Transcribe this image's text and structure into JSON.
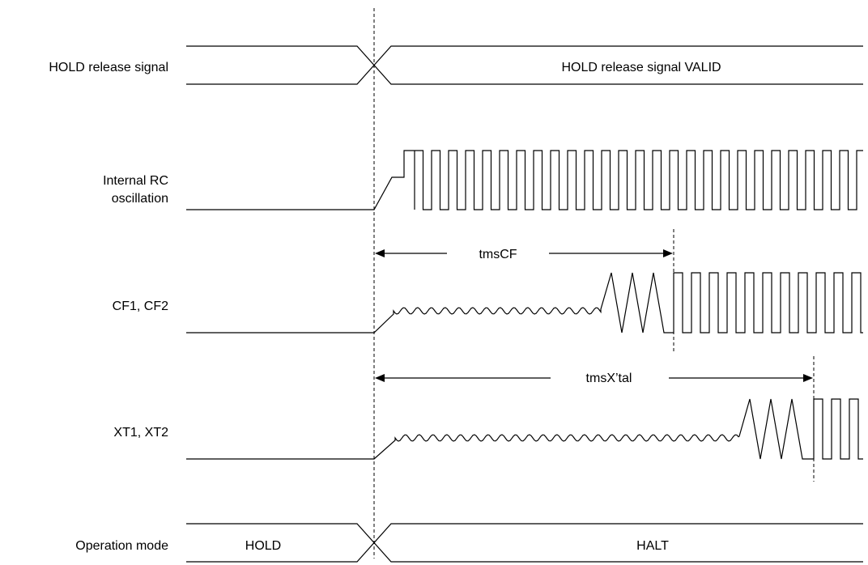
{
  "signals": {
    "hold_release": {
      "label": "HOLD release signal",
      "state_after": "HOLD release signal VALID"
    },
    "rc_oscillation": {
      "label_line1": "Internal RC",
      "label_line2": "oscillation"
    },
    "cf": {
      "label": "CF1, CF2"
    },
    "xt": {
      "label": "XT1, XT2"
    },
    "operation_mode": {
      "label": "Operation mode",
      "state_before": "HOLD",
      "state_after": "HALT"
    }
  },
  "timings": {
    "cf": {
      "label": "tmsCF"
    },
    "xtal": {
      "label": "tmsX’tal"
    }
  }
}
